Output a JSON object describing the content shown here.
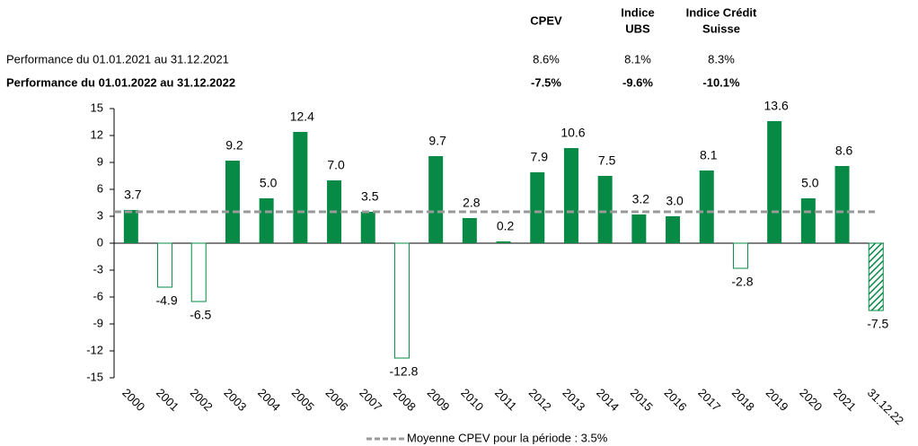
{
  "table": {
    "columns": [
      [
        "CPEV"
      ],
      [
        "Indice",
        "UBS"
      ],
      [
        "Indice Crédit",
        "Suisse"
      ]
    ],
    "rows": [
      {
        "label": "Performance du 01.01.2021 au 31.12.2021",
        "cells": [
          "8.6%",
          "8.1%",
          "8.3%"
        ],
        "bold": false
      },
      {
        "label": "Performance du 01.01.2022 au 31.12.2022",
        "cells": [
          "-7.5%",
          "-9.6%",
          "-10.1%"
        ],
        "bold": true
      }
    ]
  },
  "chart_data": {
    "type": "bar",
    "categories": [
      "2000",
      "2001",
      "2002",
      "2003",
      "2004",
      "2005",
      "2006",
      "2007",
      "2008",
      "2009",
      "2010",
      "2011",
      "2012",
      "2013",
      "2014",
      "2015",
      "2016",
      "2017",
      "2018",
      "2019",
      "2020",
      "2021",
      "31.12.22"
    ],
    "values": [
      3.7,
      -4.9,
      -6.5,
      9.2,
      5.0,
      12.4,
      7.0,
      3.5,
      -12.8,
      9.7,
      2.8,
      0.2,
      7.9,
      10.6,
      7.5,
      3.2,
      3.0,
      8.1,
      -2.8,
      13.6,
      5.0,
      8.6,
      -7.5
    ],
    "value_labels": [
      "3.7",
      "-4.9",
      "-6.5",
      "9.2",
      "5.0",
      "12.4",
      "7.0",
      "3.5",
      "-12.8",
      "9.7",
      "2.8",
      "0.2",
      "7.9",
      "10.6",
      "7.5",
      "3.2",
      "3.0",
      "8.1",
      "-2.8",
      "13.6",
      "5.0",
      "8.6",
      "-7.5"
    ],
    "color": "#078a45",
    "negative_fill": "none",
    "hatch_last": true,
    "ylim": [
      -15,
      15
    ],
    "yticks": [
      15,
      12,
      9,
      6,
      3,
      0,
      -3,
      -6,
      -9,
      -12,
      -15
    ],
    "grid": false,
    "average": {
      "value": 3.5,
      "label": "Moyenne CPEV pour la période : 3.5%",
      "color": "#999999"
    }
  }
}
